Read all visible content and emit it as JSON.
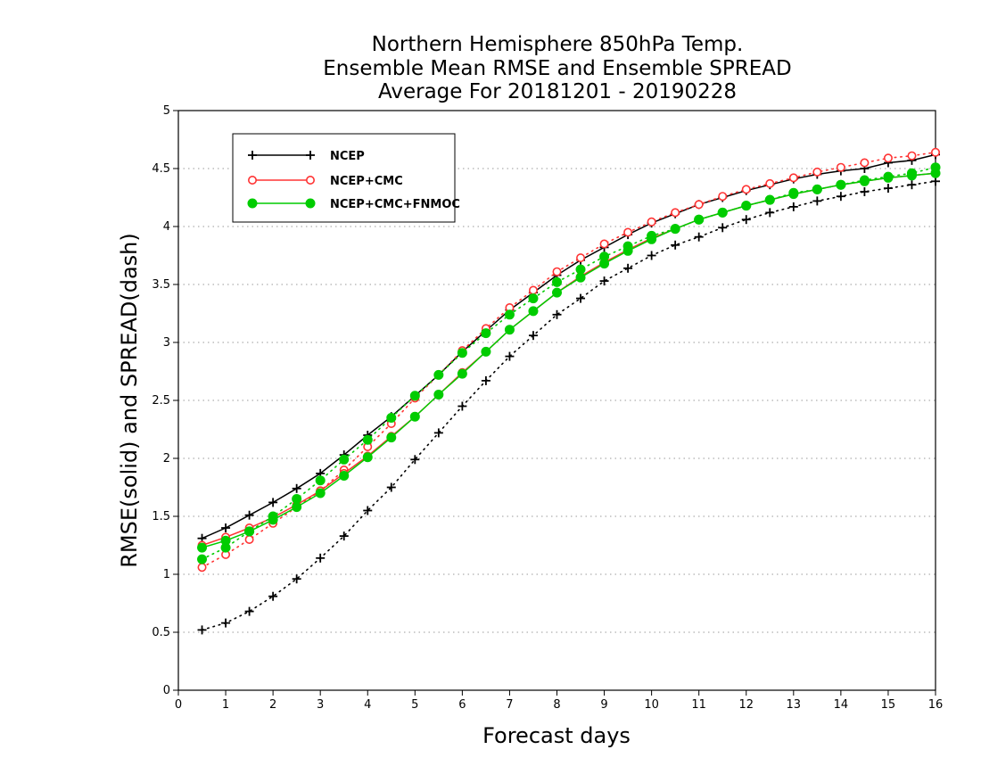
{
  "chart_data": {
    "type": "line",
    "title_lines": [
      "Northern Hemisphere 850hPa Temp.",
      "Ensemble Mean RMSE and Ensemble SPREAD",
      "Average For 20181201 - 20190228"
    ],
    "xlabel": "Forecast days",
    "ylabel": "RMSE(solid) and SPREAD(dash)",
    "xlim": [
      0,
      16
    ],
    "ylim": [
      0,
      5
    ],
    "xticks": [
      0,
      1,
      2,
      3,
      4,
      5,
      6,
      7,
      8,
      9,
      10,
      11,
      12,
      13,
      14,
      15,
      16
    ],
    "yticks": [
      0,
      0.5,
      1,
      1.5,
      2,
      2.5,
      3,
      3.5,
      4,
      4.5,
      5
    ],
    "ytick_labels": [
      "0",
      "0.5",
      "1",
      "1.5",
      "2",
      "2.5",
      "3",
      "3.5",
      "4",
      "4.5",
      "5"
    ],
    "grid": "horizontal dotted",
    "legend_position": "top-left",
    "x": [
      0.5,
      1,
      1.5,
      2,
      2.5,
      3,
      3.5,
      4,
      4.5,
      5,
      5.5,
      6,
      6.5,
      7,
      7.5,
      8,
      8.5,
      9,
      9.5,
      10,
      10.5,
      11,
      11.5,
      12,
      12.5,
      13,
      13.5,
      14,
      14.5,
      15,
      15.5,
      16
    ],
    "series": [
      {
        "name": "NCEP",
        "color": "#000000",
        "marker": "plus",
        "rmse": [
          1.31,
          1.4,
          1.51,
          1.62,
          1.74,
          1.87,
          2.03,
          2.2,
          2.36,
          2.54,
          2.72,
          2.92,
          3.1,
          3.28,
          3.43,
          3.58,
          3.71,
          3.82,
          3.93,
          4.03,
          4.11,
          4.19,
          4.25,
          4.31,
          4.36,
          4.41,
          4.45,
          4.48,
          4.5,
          4.55,
          4.57,
          4.62
        ],
        "spread": [
          0.52,
          0.58,
          0.68,
          0.81,
          0.96,
          1.14,
          1.33,
          1.55,
          1.75,
          1.99,
          2.22,
          2.45,
          2.67,
          2.88,
          3.06,
          3.24,
          3.38,
          3.53,
          3.64,
          3.75,
          3.84,
          3.91,
          3.99,
          4.06,
          4.12,
          4.17,
          4.22,
          4.26,
          4.3,
          4.33,
          4.36,
          4.39
        ]
      },
      {
        "name": "NCEP+CMC",
        "color": "#ff3333",
        "marker": "open-circle",
        "rmse": [
          1.25,
          1.32,
          1.4,
          1.49,
          1.6,
          1.72,
          1.87,
          2.02,
          2.19,
          2.36,
          2.55,
          2.74,
          2.92,
          3.11,
          3.27,
          3.43,
          3.57,
          3.69,
          3.8,
          3.9,
          3.98,
          4.06,
          4.12,
          4.18,
          4.23,
          4.28,
          4.32,
          4.36,
          4.39,
          4.42,
          4.44,
          4.46
        ],
        "spread": [
          1.06,
          1.17,
          1.3,
          1.44,
          1.58,
          1.72,
          1.9,
          2.1,
          2.3,
          2.52,
          2.72,
          2.93,
          3.12,
          3.3,
          3.45,
          3.61,
          3.73,
          3.85,
          3.95,
          4.04,
          4.12,
          4.19,
          4.26,
          4.32,
          4.37,
          4.42,
          4.47,
          4.51,
          4.55,
          4.59,
          4.61,
          4.64
        ]
      },
      {
        "name": "NCEP+CMC+FNMOC",
        "color": "#00cc00",
        "marker": "filled-circle",
        "rmse": [
          1.23,
          1.29,
          1.37,
          1.47,
          1.58,
          1.7,
          1.85,
          2.01,
          2.18,
          2.36,
          2.55,
          2.73,
          2.92,
          3.11,
          3.27,
          3.43,
          3.56,
          3.68,
          3.79,
          3.89,
          3.98,
          4.06,
          4.12,
          4.18,
          4.23,
          4.28,
          4.32,
          4.36,
          4.39,
          4.42,
          4.44,
          4.46
        ],
        "spread": [
          1.13,
          1.23,
          1.37,
          1.5,
          1.65,
          1.81,
          1.99,
          2.16,
          2.35,
          2.54,
          2.72,
          2.91,
          3.08,
          3.24,
          3.38,
          3.52,
          3.63,
          3.74,
          3.83,
          3.92,
          3.98,
          4.06,
          4.12,
          4.18,
          4.23,
          4.29,
          4.32,
          4.36,
          4.4,
          4.43,
          4.46,
          4.51
        ]
      }
    ]
  }
}
